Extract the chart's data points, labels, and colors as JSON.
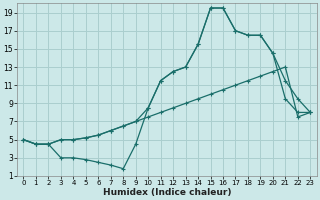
{
  "xlabel": "Humidex (Indice chaleur)",
  "bg_color": "#cce8e8",
  "grid_color": "#aacece",
  "line_color": "#1a6e6a",
  "xlim": [
    -0.5,
    23.5
  ],
  "ylim": [
    1,
    20
  ],
  "xticks": [
    0,
    1,
    2,
    3,
    4,
    5,
    6,
    7,
    8,
    9,
    10,
    11,
    12,
    13,
    14,
    15,
    16,
    17,
    18,
    19,
    20,
    21,
    22,
    23
  ],
  "yticks": [
    1,
    3,
    5,
    7,
    9,
    11,
    13,
    15,
    17,
    19
  ],
  "line1_x": [
    0,
    1,
    2,
    3,
    4,
    5,
    6,
    7,
    8,
    9,
    10,
    11,
    12,
    13,
    14,
    15,
    16,
    17,
    18,
    19,
    20,
    21,
    22,
    23
  ],
  "line1_y": [
    5.0,
    4.5,
    4.5,
    5.0,
    5.0,
    5.2,
    5.5,
    6.0,
    6.5,
    7.0,
    7.5,
    8.0,
    8.5,
    9.0,
    9.5,
    10.0,
    10.5,
    11.0,
    11.5,
    12.0,
    12.5,
    13.0,
    7.5,
    8.0
  ],
  "line2_x": [
    0,
    1,
    2,
    3,
    4,
    5,
    6,
    7,
    8,
    9,
    10,
    11,
    12,
    13,
    14,
    15,
    16,
    17,
    18,
    19,
    20,
    21,
    22,
    23
  ],
  "line2_y": [
    5.0,
    4.5,
    4.5,
    3.0,
    3.0,
    2.8,
    2.5,
    2.2,
    1.8,
    4.5,
    8.5,
    11.5,
    12.5,
    13.0,
    15.5,
    19.5,
    19.5,
    17.0,
    16.5,
    16.5,
    14.5,
    11.5,
    9.5,
    8.0
  ],
  "line3_x": [
    0,
    1,
    2,
    3,
    4,
    5,
    6,
    7,
    8,
    9,
    10,
    11,
    12,
    13,
    14,
    15,
    16,
    17,
    18,
    19,
    20,
    21,
    22,
    23
  ],
  "line3_y": [
    5.0,
    4.5,
    4.5,
    5.0,
    5.0,
    5.2,
    5.5,
    6.0,
    6.5,
    7.0,
    8.5,
    11.5,
    12.5,
    13.0,
    15.5,
    19.5,
    19.5,
    17.0,
    16.5,
    16.5,
    14.5,
    9.5,
    8.0,
    8.0
  ]
}
